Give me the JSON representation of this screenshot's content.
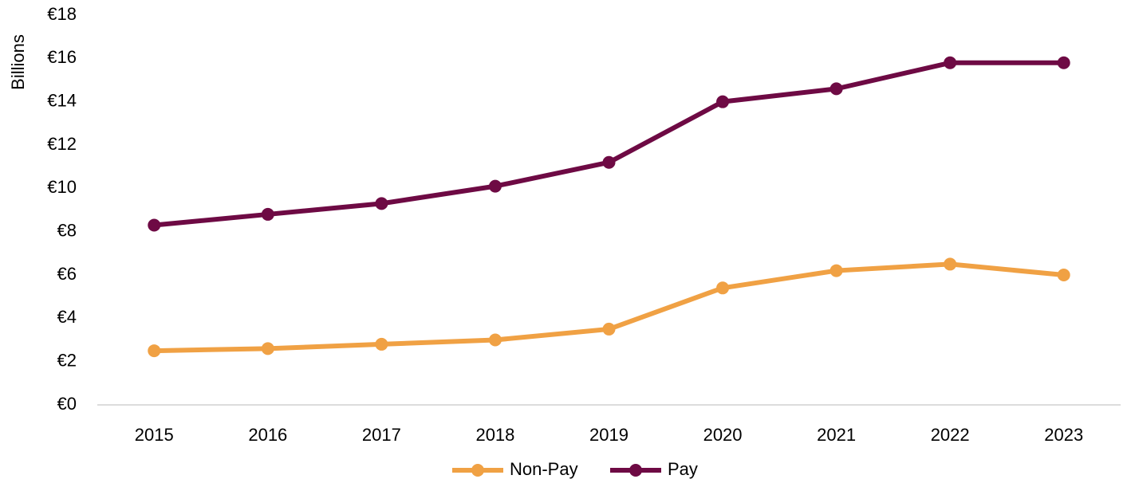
{
  "chart_data": {
    "type": "line",
    "y_label": "Billions",
    "categories": [
      "2015",
      "2016",
      "2017",
      "2018",
      "2019",
      "2020",
      "2021",
      "2022",
      "2023"
    ],
    "series": [
      {
        "name": "Non-Pay",
        "color": "#f0a144",
        "values": [
          2.5,
          2.6,
          2.8,
          3.0,
          3.5,
          5.4,
          6.2,
          6.5,
          6.0
        ]
      },
      {
        "name": "Pay",
        "color": "#6e0a44",
        "values": [
          8.3,
          8.8,
          9.3,
          10.1,
          11.2,
          14.0,
          14.6,
          15.8,
          15.8
        ]
      }
    ],
    "ylim": [
      0,
      18
    ],
    "yticks": [
      {
        "value": 0,
        "label": "€0"
      },
      {
        "value": 2,
        "label": "€2"
      },
      {
        "value": 4,
        "label": "€4"
      },
      {
        "value": 6,
        "label": "€6"
      },
      {
        "value": 8,
        "label": "€8"
      },
      {
        "value": 10,
        "label": "€10"
      },
      {
        "value": 12,
        "label": "€12"
      },
      {
        "value": 14,
        "label": "€14"
      },
      {
        "value": 16,
        "label": "€16"
      },
      {
        "value": 18,
        "label": "€18"
      }
    ],
    "grid": false,
    "legend": "bottom"
  }
}
